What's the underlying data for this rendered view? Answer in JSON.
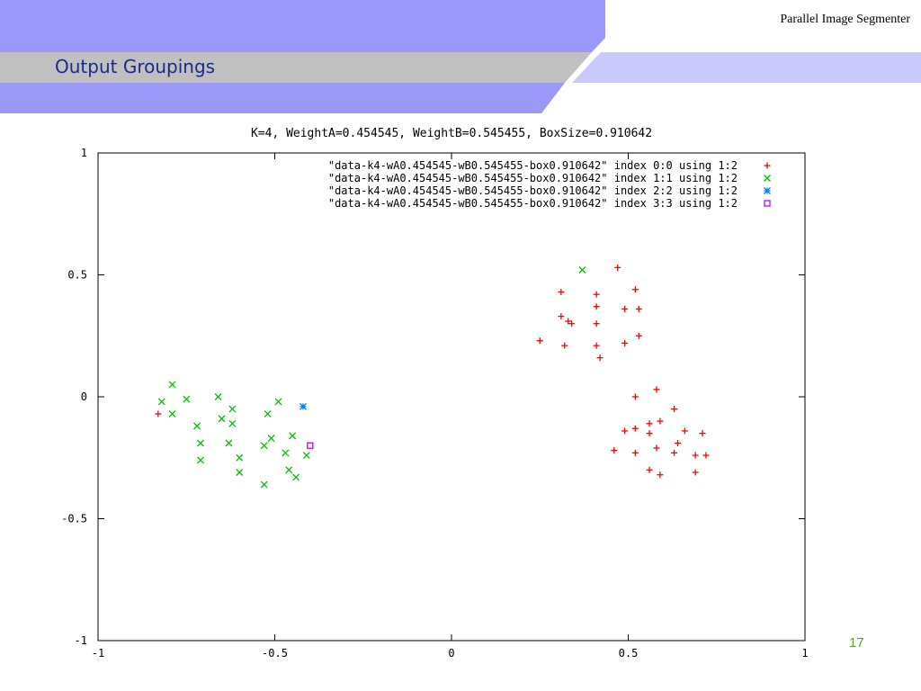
{
  "slide": {
    "title": "Output Groupings",
    "deck_title": "Parallel Image Segmenter",
    "page_number": "17"
  },
  "colors": {
    "header_band": "#9b99f7",
    "title_band": "#c0c0c0",
    "light_band": "#c9c9fb",
    "series": [
      "#ff0000",
      "#00c000",
      "#0080ff",
      "#c000ff"
    ]
  },
  "chart_data": {
    "type": "scatter",
    "title": "K=4, WeightA=0.454545, WeightB=0.545455, BoxSize=0.910642",
    "xlabel": "",
    "ylabel": "",
    "xlim": [
      -1,
      1
    ],
    "ylim": [
      -1,
      1
    ],
    "xticks": [
      -1,
      -0.5,
      0,
      0.5,
      1
    ],
    "yticks": [
      -1,
      -0.5,
      0,
      0.5,
      1
    ],
    "xtick_labels": [
      "-1",
      "-0.5",
      "0",
      "0.5",
      "1"
    ],
    "ytick_labels": [
      "-1",
      "-0.5",
      "0",
      "0.5",
      "1"
    ],
    "grid": false,
    "legend_position": "top-right",
    "series": [
      {
        "name": "\"data-k4-wA0.454545-wB0.545455-box0.910642\" index 0:0 using 1:2",
        "marker": "plus",
        "points": [
          [
            -0.83,
            -0.07
          ],
          [
            0.25,
            0.23
          ],
          [
            0.31,
            0.43
          ],
          [
            0.31,
            0.33
          ],
          [
            0.33,
            0.31
          ],
          [
            0.32,
            0.21
          ],
          [
            0.34,
            0.3
          ],
          [
            0.41,
            0.42
          ],
          [
            0.41,
            0.37
          ],
          [
            0.41,
            0.3
          ],
          [
            0.41,
            0.21
          ],
          [
            0.42,
            0.16
          ],
          [
            0.47,
            0.53
          ],
          [
            0.49,
            0.22
          ],
          [
            0.49,
            0.36
          ],
          [
            0.52,
            0.44
          ],
          [
            0.53,
            0.36
          ],
          [
            0.53,
            0.25
          ],
          [
            0.52,
            0.0
          ],
          [
            0.58,
            0.03
          ],
          [
            0.63,
            -0.05
          ],
          [
            0.49,
            -0.14
          ],
          [
            0.52,
            -0.13
          ],
          [
            0.56,
            -0.11
          ],
          [
            0.56,
            -0.15
          ],
          [
            0.59,
            -0.1
          ],
          [
            0.46,
            -0.22
          ],
          [
            0.52,
            -0.23
          ],
          [
            0.58,
            -0.21
          ],
          [
            0.63,
            -0.23
          ],
          [
            0.64,
            -0.19
          ],
          [
            0.66,
            -0.14
          ],
          [
            0.56,
            -0.3
          ],
          [
            0.59,
            -0.32
          ],
          [
            0.69,
            -0.24
          ],
          [
            0.69,
            -0.31
          ],
          [
            0.71,
            -0.15
          ],
          [
            0.72,
            -0.24
          ]
        ]
      },
      {
        "name": "\"data-k4-wA0.454545-wB0.545455-box0.910642\" index 1:1 using 1:2",
        "marker": "cross",
        "points": [
          [
            -0.79,
            0.05
          ],
          [
            -0.82,
            -0.02
          ],
          [
            -0.79,
            -0.07
          ],
          [
            -0.75,
            -0.01
          ],
          [
            -0.72,
            -0.12
          ],
          [
            -0.71,
            -0.19
          ],
          [
            -0.71,
            -0.26
          ],
          [
            -0.66,
            0.0
          ],
          [
            -0.65,
            -0.09
          ],
          [
            -0.62,
            -0.05
          ],
          [
            -0.62,
            -0.11
          ],
          [
            -0.63,
            -0.19
          ],
          [
            -0.6,
            -0.25
          ],
          [
            -0.6,
            -0.31
          ],
          [
            -0.53,
            -0.2
          ],
          [
            -0.52,
            -0.07
          ],
          [
            -0.51,
            -0.17
          ],
          [
            -0.49,
            -0.02
          ],
          [
            -0.47,
            -0.23
          ],
          [
            -0.46,
            -0.3
          ],
          [
            -0.45,
            -0.16
          ],
          [
            -0.44,
            -0.33
          ],
          [
            -0.53,
            -0.36
          ],
          [
            -0.41,
            -0.24
          ],
          [
            0.37,
            0.52
          ]
        ]
      },
      {
        "name": "\"data-k4-wA0.454545-wB0.545455-box0.910642\" index 2:2 using 1:2",
        "marker": "star",
        "points": [
          [
            -0.42,
            -0.04
          ]
        ]
      },
      {
        "name": "\"data-k4-wA0.454545-wB0.545455-box0.910642\" index 3:3 using 1:2",
        "marker": "box",
        "points": [
          [
            -0.4,
            -0.2
          ]
        ]
      }
    ]
  }
}
